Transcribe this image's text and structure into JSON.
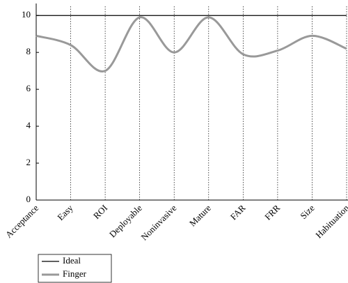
{
  "chart_data": {
    "type": "line",
    "categories": [
      "Acceptance",
      "Easy",
      "ROI",
      "Deployable",
      "Noninvasive",
      "Mature",
      "FAR",
      "FRR",
      "Size",
      "Habituation"
    ],
    "series": [
      {
        "name": "Ideal",
        "color": "#000000",
        "values": [
          10,
          10,
          10,
          10,
          10,
          10,
          10,
          10,
          10,
          10
        ]
      },
      {
        "name": "Finger",
        "color": "#999999",
        "values": [
          8.9,
          8.4,
          7.0,
          9.9,
          8.0,
          9.9,
          7.9,
          8.1,
          8.9,
          8.2
        ]
      }
    ],
    "ylim": [
      0,
      10.5
    ],
    "yticks": [
      0,
      2,
      4,
      6,
      8,
      10
    ],
    "smooth": true,
    "grid": "x"
  }
}
